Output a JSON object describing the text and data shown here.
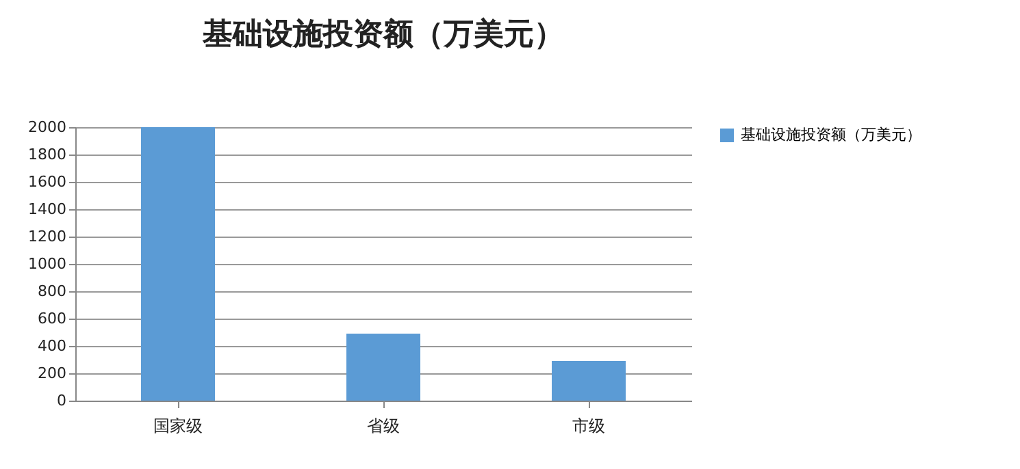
{
  "chart_data": {
    "type": "bar",
    "title": "基础设施投资额（万美元）",
    "categories": [
      "国家级",
      "省级",
      "市级"
    ],
    "series": [
      {
        "name": "基础设施投资额（万美元）",
        "color": "#5b9bd5",
        "values": [
          2000,
          490,
          290
        ]
      }
    ],
    "ylim": [
      0,
      2000
    ],
    "yticks": [
      0,
      200,
      400,
      600,
      800,
      1000,
      1200,
      1400,
      1600,
      1800,
      2000
    ],
    "grid": "y",
    "legend": "right"
  }
}
